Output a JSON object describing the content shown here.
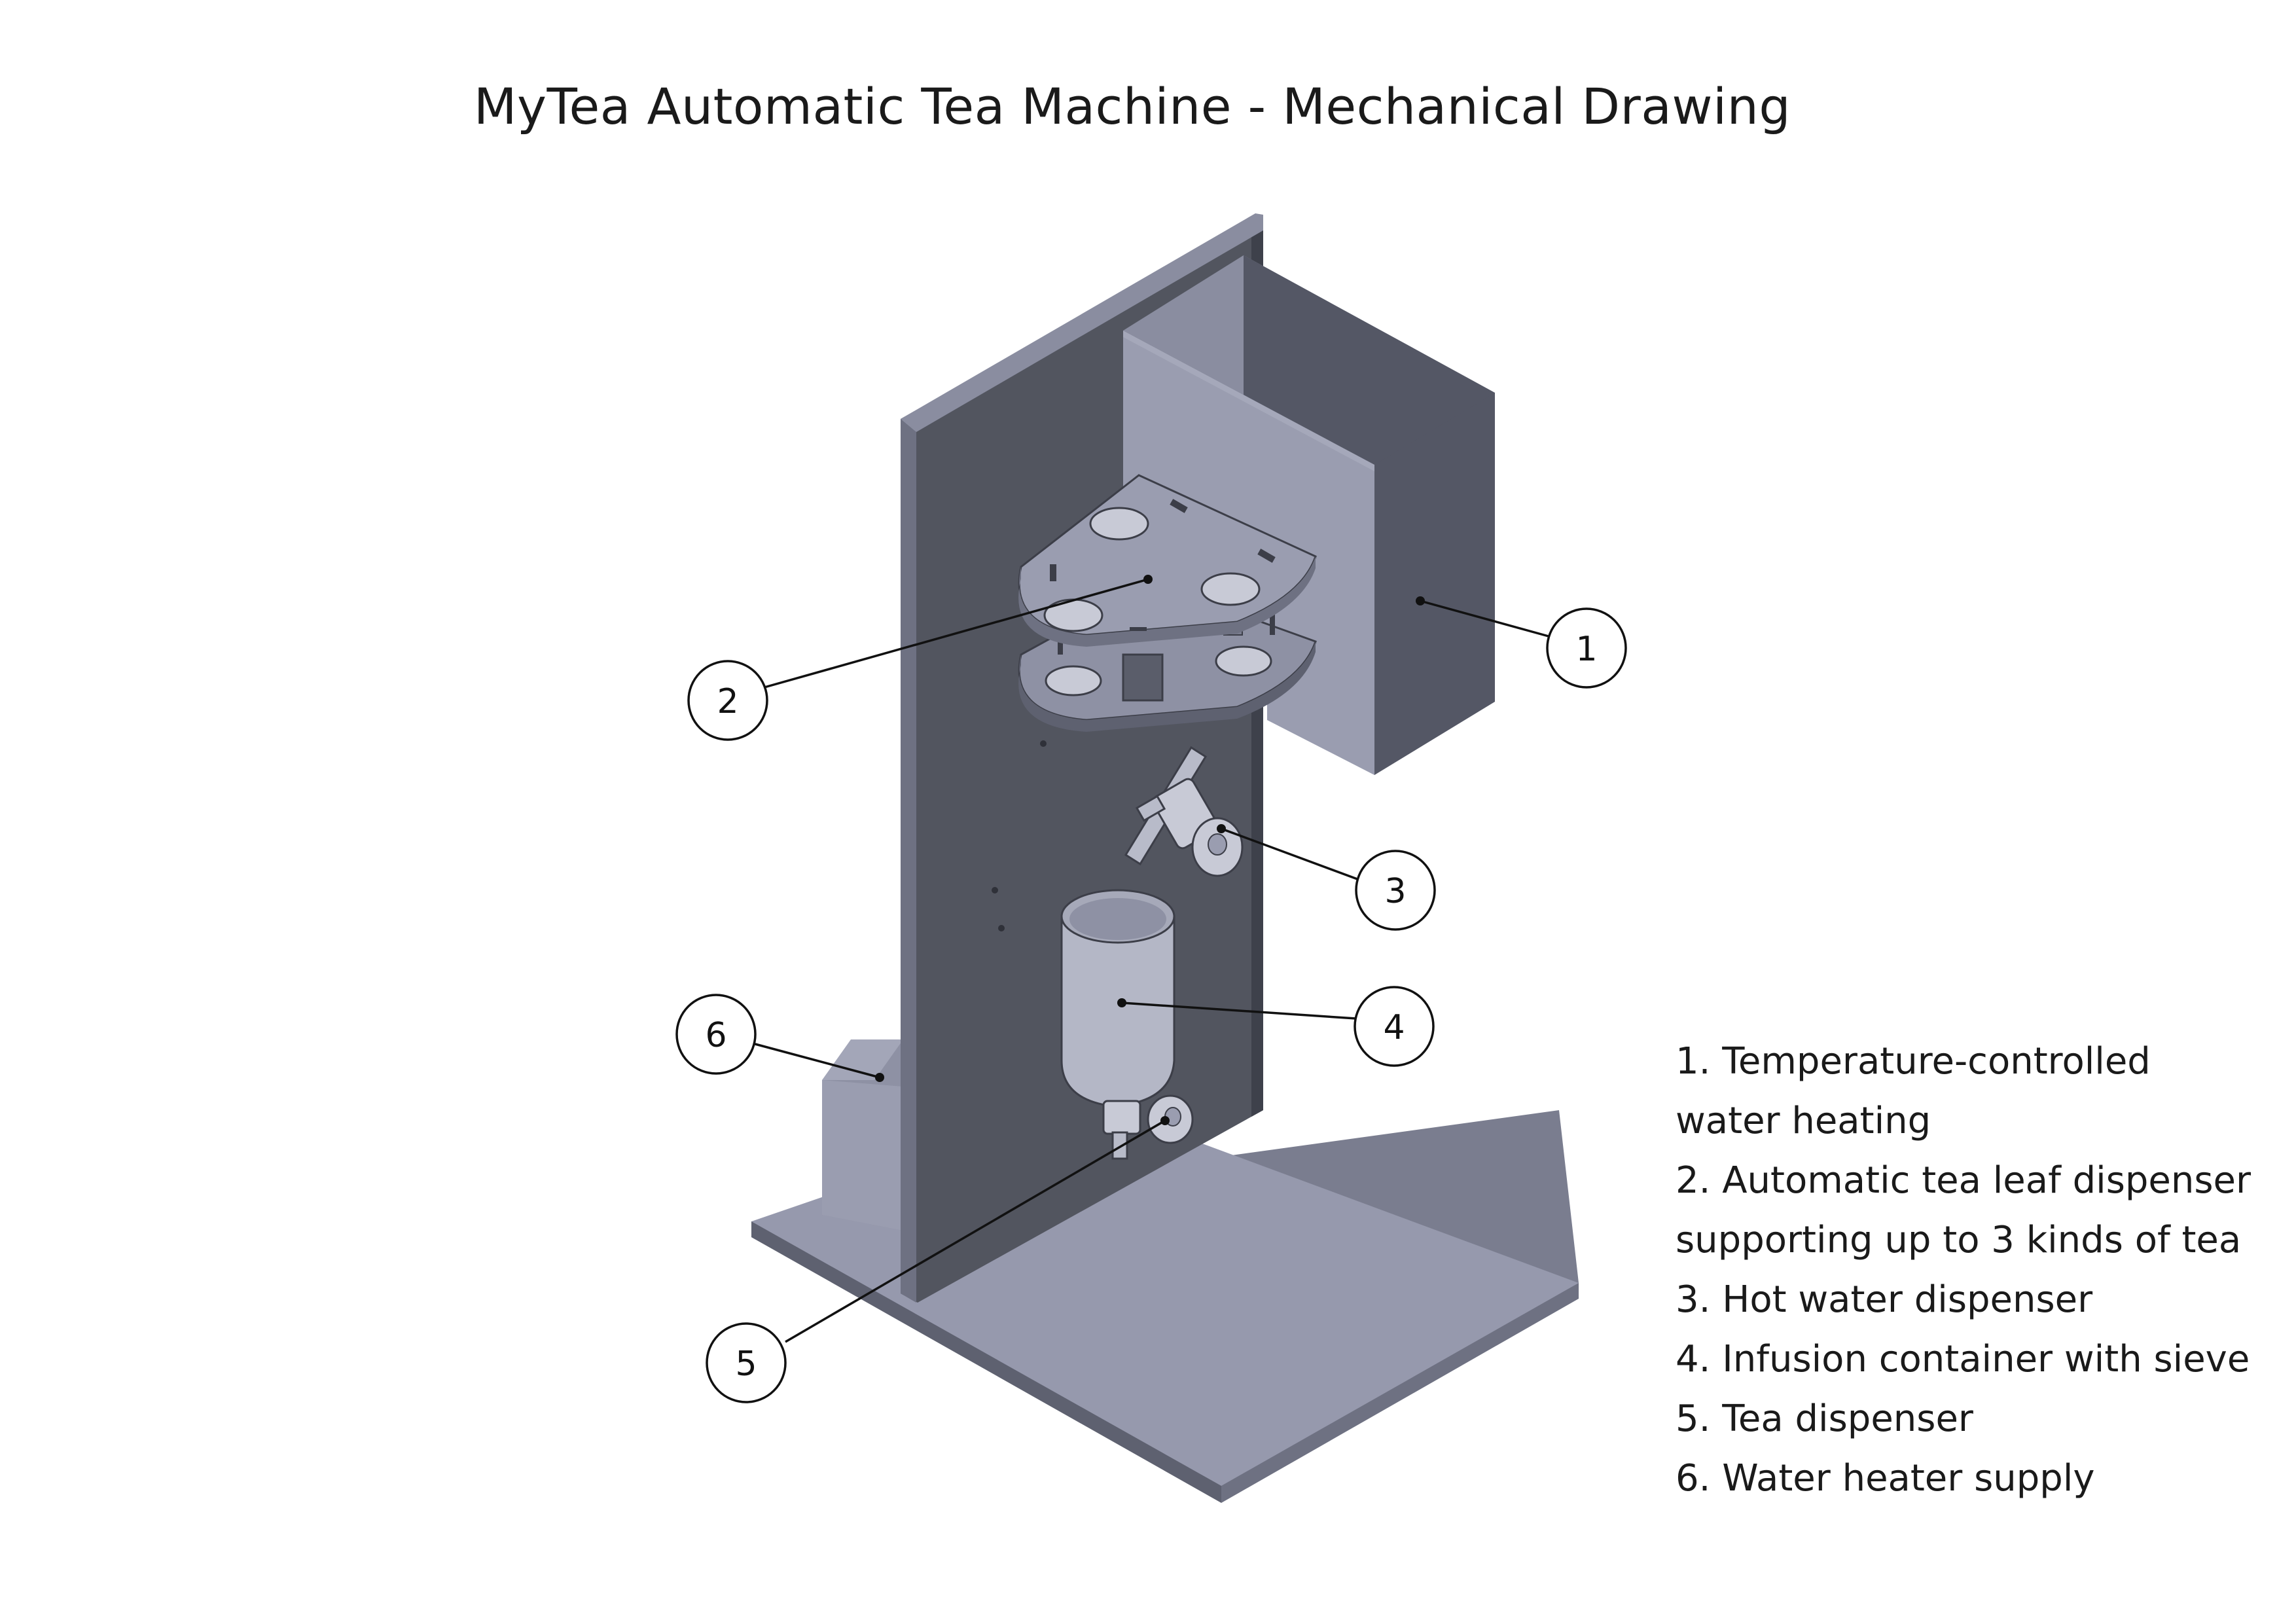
{
  "title": "MyTea Automatic Tea Machine - Mechanical Drawing",
  "callouts": [
    {
      "number": "1"
    },
    {
      "number": "2"
    },
    {
      "number": "3"
    },
    {
      "number": "4"
    },
    {
      "number": "5"
    },
    {
      "number": "6"
    }
  ],
  "legend": [
    {
      "line1": "1. Temperature-controlled",
      "line2": "water heating"
    },
    {
      "line1": "2. Automatic tea leaf dispenser",
      "line2": "supporting up to 3 kinds of tea"
    },
    {
      "line1": "3. Hot water dispenser"
    },
    {
      "line1": "4. Infusion container with sieve"
    },
    {
      "line1": "5. Tea dispenser"
    },
    {
      "line1": "6. Water heater supply"
    }
  ],
  "colors": {
    "plate_front": "#52555f",
    "plate_edge": "#707482",
    "base_top": "#9699ad",
    "base_edge": "#7a7d8f",
    "box_front": "#9a9db0",
    "box_side": "#545765",
    "box_top": "#8a8da0",
    "line": "#111111"
  }
}
